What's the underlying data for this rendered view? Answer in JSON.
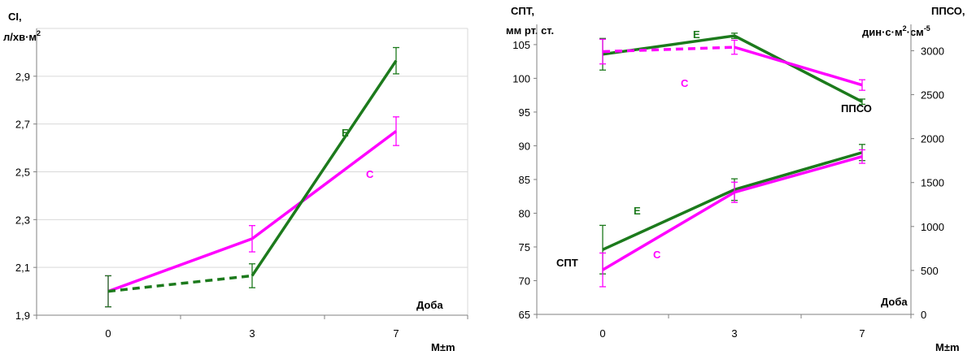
{
  "colors": {
    "E": "#1c7a1c",
    "C": "#ff00ff",
    "axis": "#808080",
    "grid": "#d9d9d9"
  },
  "chart_data": [
    {
      "type": "line",
      "ylabel_line1": "CI,",
      "ylabel_line2": "л/хв·м",
      "ylabel_sup": "2",
      "xlabel": "Доба",
      "corner_label": "M±m",
      "categories": [
        "0",
        "3",
        "7"
      ],
      "ylim": [
        1.9,
        3.1
      ],
      "yticks": [
        "1,9",
        "2,1",
        "2,3",
        "2,5",
        "2,7",
        "2,9"
      ],
      "yticks_values": [
        1.9,
        2.1,
        2.3,
        2.5,
        2.7,
        2.9
      ],
      "grid": "horizontal",
      "series": [
        {
          "name": "Е",
          "color": "#1c7a1c",
          "values": [
            2.0,
            2.065,
            2.965
          ],
          "err": [
            0.065,
            0.05,
            0.055
          ],
          "dashed_segments": [
            0
          ]
        },
        {
          "name": "С",
          "color": "#ff00ff",
          "values": [
            2.0,
            2.22,
            2.67
          ],
          "err": [
            0.065,
            0.055,
            0.06
          ],
          "dashed_segments": []
        }
      ]
    },
    {
      "type": "line",
      "ylabel_left_line1": "СПТ,",
      "ylabel_left_line2": "мм рт. ст.",
      "ylabel_right_line1": "ППСО,",
      "ylabel_right_line2": "дин·с·м",
      "ylabel_right_sup1": "2",
      "ylabel_right_mid": "·см",
      "ylabel_right_sup2": "-5",
      "xlabel": "Доба",
      "corner_label": "M±m",
      "categories": [
        "0",
        "3",
        "7"
      ],
      "ylim_left": [
        65,
        108
      ],
      "yticks_left": [
        "65",
        "70",
        "75",
        "80",
        "85",
        "90",
        "95",
        "100",
        "105"
      ],
      "yticks_left_values": [
        65,
        70,
        75,
        80,
        85,
        90,
        95,
        100,
        105
      ],
      "ylim_right": [
        0,
        3300
      ],
      "yticks_right": [
        "0",
        "500",
        "1000",
        "1500",
        "2000",
        "2500",
        "3000"
      ],
      "yticks_right_values": [
        0,
        500,
        1000,
        1500,
        2000,
        2500,
        3000
      ],
      "group_labels": {
        "spt": "СПТ",
        "ppso": "ППСО"
      },
      "series": [
        {
          "name": "Е",
          "group": "СПТ",
          "color": "#1c7a1c",
          "axis": "left",
          "values": [
            74.6,
            83.5,
            89.0
          ],
          "err": [
            3.6,
            1.6,
            1.2
          ],
          "dashed_segments": []
        },
        {
          "name": "С",
          "group": "СПТ",
          "color": "#ff00ff",
          "axis": "left",
          "values": [
            71.6,
            83.1,
            88.4
          ],
          "err": [
            2.5,
            1.5,
            1.0
          ],
          "dashed_segments": []
        },
        {
          "name": "Е",
          "group": "ППСО",
          "color": "#1c7a1c",
          "axis": "right",
          "values": [
            2960,
            3170,
            2420
          ],
          "err": [
            180,
            30,
            30
          ],
          "dashed_segments": []
        },
        {
          "name": "С",
          "group": "ППСО",
          "color": "#ff00ff",
          "axis": "right",
          "values": [
            2990,
            3040,
            2610
          ],
          "err": [
            140,
            80,
            60
          ],
          "dashed_segments": [
            0
          ]
        }
      ]
    }
  ]
}
